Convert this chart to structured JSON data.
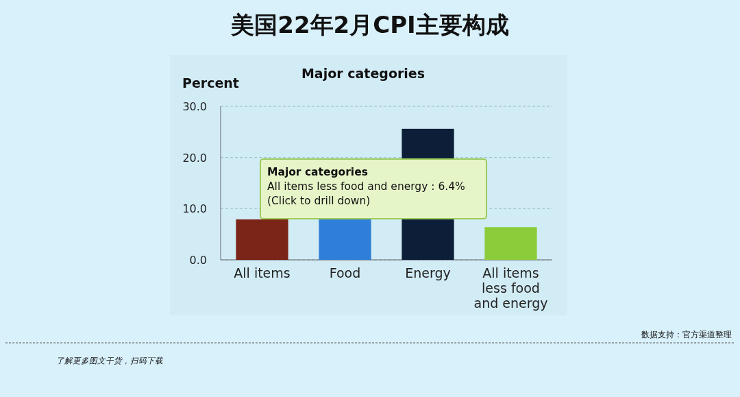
{
  "chart_data": {
    "type": "bar",
    "title": "美国22年2月CPI主要构成",
    "subtitle": "Major categories",
    "ylabel": "Percent",
    "categories": [
      "All items",
      "Food",
      "Energy",
      "All items less food and energy"
    ],
    "values": [
      7.9,
      7.9,
      25.6,
      6.4
    ],
    "colors": [
      "#7b2418",
      "#2f7fd8",
      "#0d1f38",
      "#8ccc3a"
    ],
    "ylim": [
      0,
      30
    ],
    "yticks": [
      {
        "value": 0,
        "label": "0.0"
      },
      {
        "value": 10,
        "label": "10.0"
      },
      {
        "value": 20,
        "label": "20.0"
      },
      {
        "value": 30,
        "label": "30.0"
      }
    ],
    "grid": "y",
    "annotations": [
      "Major categories\nAll items less food and energy : 6.4%\n(Click to drill down)",
      "数据支持：官方渠道整理",
      "了解更多图文干货，扫码下载"
    ]
  }
}
